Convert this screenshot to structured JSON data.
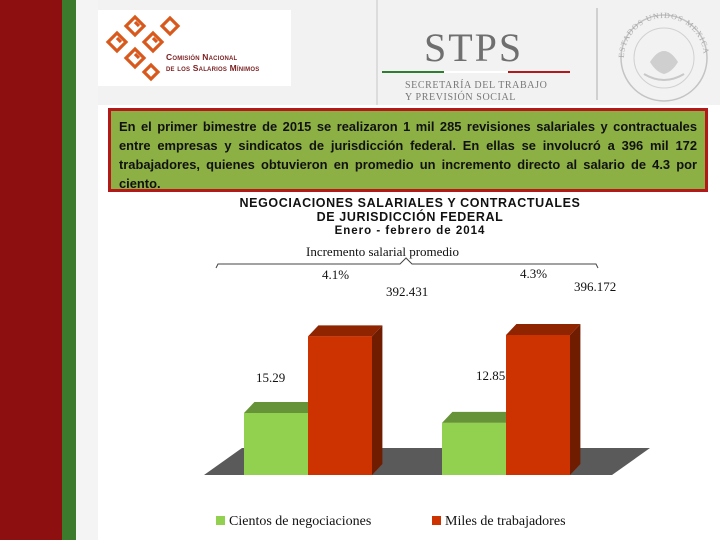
{
  "header": {
    "conasami_line1": "Comisión Nacional",
    "conasami_line2": "de los Salarios Mínimos",
    "stps_title": "STPS",
    "stps_line1": "SECRETARÍA DEL TRABAJO",
    "stps_line2": "Y PREVISIÓN SOCIAL",
    "seal_text": "ESTADOS UNIDOS MEXICANOS"
  },
  "summary": {
    "text": "En el primer bimestre de 2015 se realizaron 1 mil 285 revisiones salariales y contractuales entre empresas y sindicatos de jurisdicción federal. En ellas se involucró a 396 mil 172 trabajadores, quienes obtuvieron en promedio un incremento directo al salario de 4.3 por ciento."
  },
  "colors": {
    "band_red": "#8e0f10",
    "band_green": "#3c7a2c",
    "summary_bg": "#8cb043",
    "summary_border": "#b3191b",
    "series_green": "#92d050",
    "series_red": "#cc3300"
  },
  "chart_data": {
    "type": "bar",
    "title": "NEGOCIACIONES SALARIALES Y CONTRACTUALES",
    "subtitle": "DE JURISDICCIÓN FEDERAL",
    "period": "Enero - febrero de 2014",
    "bracket_label": "Incremento salarial promedio",
    "categories": [
      "",
      ""
    ],
    "series": [
      {
        "name": "Cientos de negociaciones",
        "values": [
          15.29,
          12.85
        ],
        "value_labels": [
          "15.29",
          "12.85"
        ],
        "color": "#92d050"
      },
      {
        "name": "Miles de trabajadores",
        "values": [
          392.431,
          396.172
        ],
        "value_labels": [
          "392.431",
          "396.172"
        ],
        "color": "#cc3300"
      }
    ],
    "increment_labels": [
      "4.1%",
      "4.3%"
    ],
    "legend_position": "bottom",
    "grid": false
  }
}
